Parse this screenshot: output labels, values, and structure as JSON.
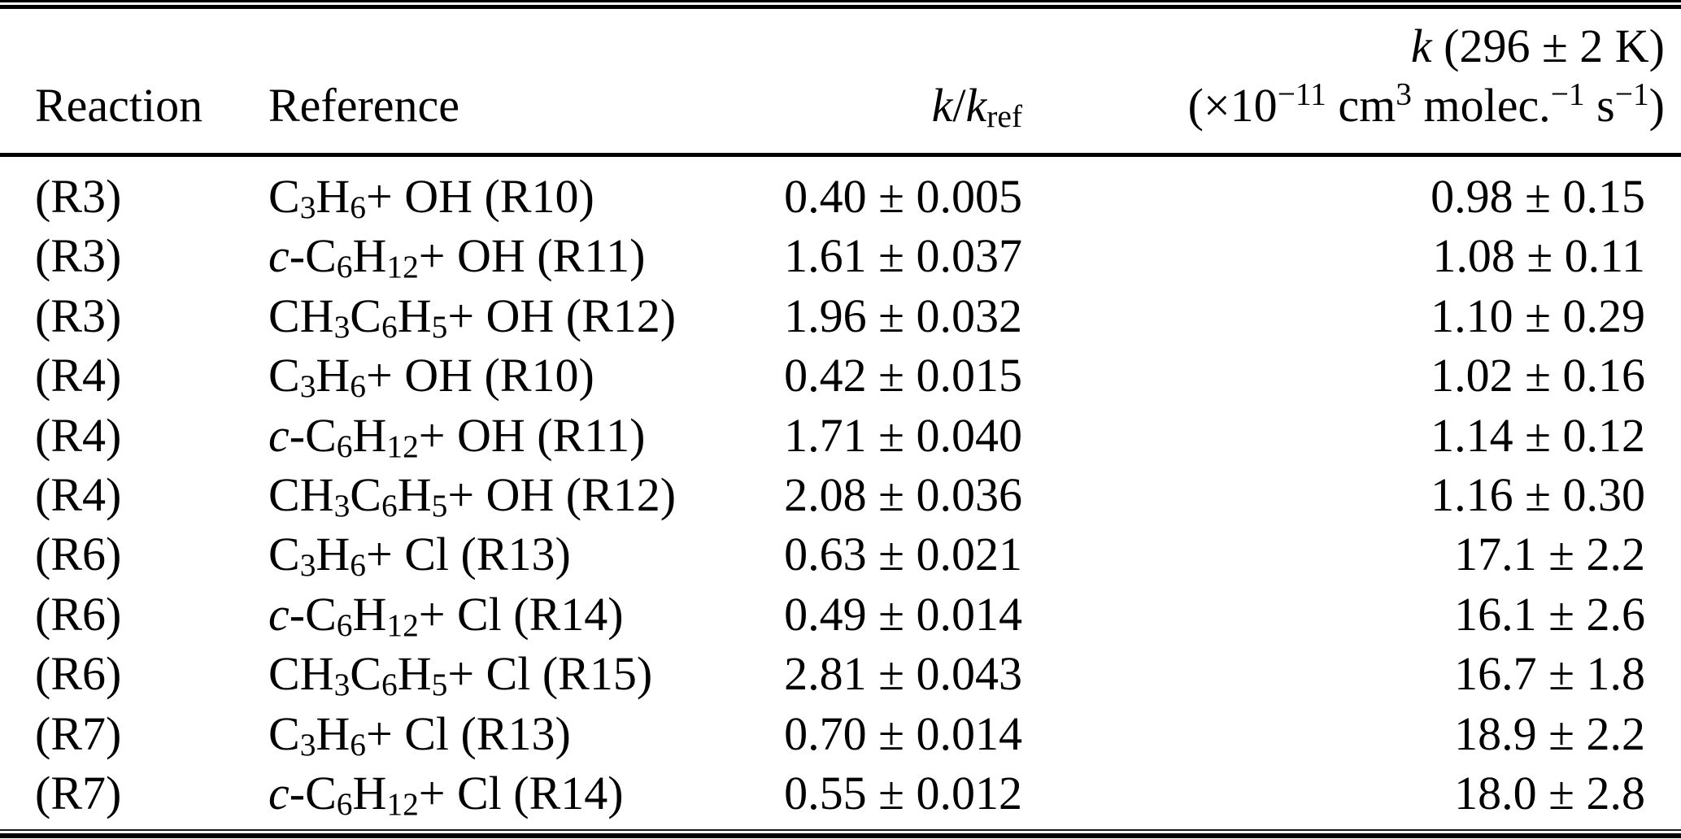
{
  "table": {
    "columns": {
      "reaction": "Reaction",
      "reference": "Reference",
      "ratio": "*k*/*k*_ref_",
      "k_line1": "*k* (296 ± 2 K)",
      "k_line2": "(×10^−11^ cm^3^ molec.^−1^ s^−1^)"
    },
    "rows": [
      {
        "reaction": "(R3)",
        "reference": "C_3_H_6_+ OH (R10)",
        "ratio": "0.40 ± 0.005",
        "k": "0.98 ± 0.15"
      },
      {
        "reaction": "(R3)",
        "reference": "*c*-C_6_H_12_+ OH (R11)",
        "ratio": "1.61 ± 0.037",
        "k": "1.08 ± 0.11"
      },
      {
        "reaction": "(R3)",
        "reference": "CH_3_C_6_H_5_+ OH (R12)",
        "ratio": "1.96 ± 0.032",
        "k": "1.10 ± 0.29"
      },
      {
        "reaction": "(R4)",
        "reference": "C_3_H_6_+ OH (R10)",
        "ratio": "0.42 ± 0.015",
        "k": "1.02 ± 0.16"
      },
      {
        "reaction": "(R4)",
        "reference": "*c*-C_6_H_12_+ OH (R11)",
        "ratio": "1.71 ± 0.040",
        "k": "1.14 ± 0.12"
      },
      {
        "reaction": "(R4)",
        "reference": "CH_3_C_6_H_5_+ OH (R12)",
        "ratio": "2.08 ± 0.036",
        "k": "1.16 ± 0.30"
      },
      {
        "reaction": "(R6)",
        "reference": "C_3_H_6_+ Cl (R13)",
        "ratio": "0.63 ± 0.021",
        "k": "17.1 ± 2.2"
      },
      {
        "reaction": "(R6)",
        "reference": "*c*-C_6_H_12_+ Cl (R14)",
        "ratio": "0.49 ± 0.014",
        "k": "16.1 ± 2.6"
      },
      {
        "reaction": "(R6)",
        "reference": "CH_3_C_6_H_5_+ Cl (R15)",
        "ratio": "2.81 ± 0.043",
        "k": "16.7 ± 1.8"
      },
      {
        "reaction": "(R7)",
        "reference": "C_3_H_6_+ Cl (R13)",
        "ratio": "0.70 ± 0.014",
        "k": "18.9 ± 2.2"
      },
      {
        "reaction": "(R7)",
        "reference": "*c*-C_6_H_12_+ Cl (R14)",
        "ratio": "0.55 ± 0.012",
        "k": "18.0 ± 2.8"
      }
    ]
  }
}
